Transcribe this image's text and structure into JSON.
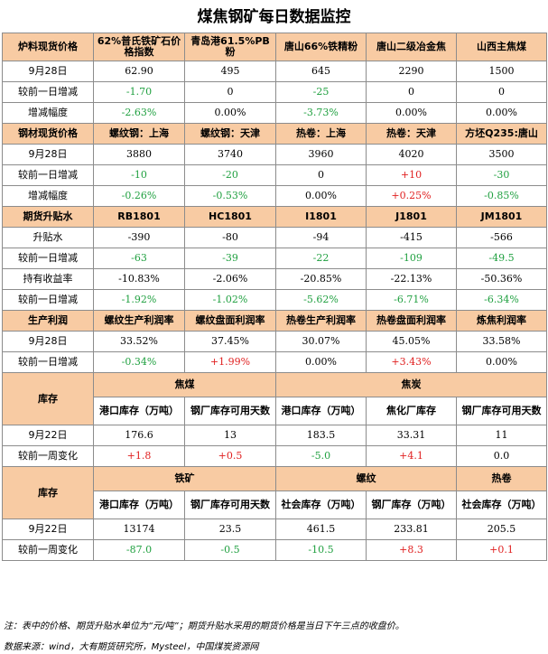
{
  "title": "煤焦钢矿每日数据监控",
  "colors": {
    "header_bg": "#f8cba3",
    "up": "#e02020",
    "down": "#20a040",
    "border": "#8c8c8c"
  },
  "s1": {
    "head": [
      "炉料现货价格",
      "62%普氏铁矿石价格指数",
      "青岛港61.5%PB粉",
      "唐山66%铁精粉",
      "唐山二级冶金焦",
      "山西主焦煤"
    ],
    "rows": [
      {
        "label": "9月28日",
        "cells": [
          {
            "v": "62.90",
            "c": ""
          },
          {
            "v": "495",
            "c": ""
          },
          {
            "v": "645",
            "c": ""
          },
          {
            "v": "2290",
            "c": ""
          },
          {
            "v": "1500",
            "c": ""
          }
        ]
      },
      {
        "label": "较前一日增减",
        "cells": [
          {
            "v": "-1.70",
            "c": "green"
          },
          {
            "v": "0",
            "c": ""
          },
          {
            "v": "-25",
            "c": "green"
          },
          {
            "v": "0",
            "c": ""
          },
          {
            "v": "0",
            "c": ""
          }
        ]
      },
      {
        "label": "增减幅度",
        "cells": [
          {
            "v": "-2.63%",
            "c": "green"
          },
          {
            "v": "0.00%",
            "c": ""
          },
          {
            "v": "-3.73%",
            "c": "green"
          },
          {
            "v": "0.00%",
            "c": ""
          },
          {
            "v": "0.00%",
            "c": ""
          }
        ]
      }
    ]
  },
  "s2": {
    "head": [
      "钢材现货价格",
      "螺纹钢：上海",
      "螺纹钢：天津",
      "热卷：上海",
      "热卷：天津",
      "方坯Q235:唐山"
    ],
    "rows": [
      {
        "label": "9月28日",
        "cells": [
          {
            "v": "3880",
            "c": ""
          },
          {
            "v": "3740",
            "c": ""
          },
          {
            "v": "3960",
            "c": ""
          },
          {
            "v": "4020",
            "c": ""
          },
          {
            "v": "3500",
            "c": ""
          }
        ]
      },
      {
        "label": "较前一日增减",
        "cells": [
          {
            "v": "-10",
            "c": "green"
          },
          {
            "v": "-20",
            "c": "green"
          },
          {
            "v": "0",
            "c": ""
          },
          {
            "v": "+10",
            "c": "red"
          },
          {
            "v": "-30",
            "c": "green"
          }
        ]
      },
      {
        "label": "增减幅度",
        "cells": [
          {
            "v": "-0.26%",
            "c": "green"
          },
          {
            "v": "-0.53%",
            "c": "green"
          },
          {
            "v": "0.00%",
            "c": ""
          },
          {
            "v": "+0.25%",
            "c": "red"
          },
          {
            "v": "-0.85%",
            "c": "green"
          }
        ]
      }
    ]
  },
  "s3": {
    "head": [
      "期货升贴水",
      "RB1801",
      "HC1801",
      "I1801",
      "J1801",
      "JM1801"
    ],
    "rows": [
      {
        "label": "升贴水",
        "cells": [
          {
            "v": "-390",
            "c": ""
          },
          {
            "v": "-80",
            "c": ""
          },
          {
            "v": "-94",
            "c": ""
          },
          {
            "v": "-415",
            "c": ""
          },
          {
            "v": "-566",
            "c": ""
          }
        ]
      },
      {
        "label": "较前一日增减",
        "cells": [
          {
            "v": "-63",
            "c": "green"
          },
          {
            "v": "-39",
            "c": "green"
          },
          {
            "v": "-22",
            "c": "green"
          },
          {
            "v": "-109",
            "c": "green"
          },
          {
            "v": "-49.5",
            "c": "green"
          }
        ]
      },
      {
        "label": "持有收益率",
        "cells": [
          {
            "v": "-10.83%",
            "c": ""
          },
          {
            "v": "-2.06%",
            "c": ""
          },
          {
            "v": "-20.85%",
            "c": ""
          },
          {
            "v": "-22.13%",
            "c": ""
          },
          {
            "v": "-50.36%",
            "c": ""
          }
        ]
      },
      {
        "label": "较前一日增减",
        "cells": [
          {
            "v": "-1.92%",
            "c": "green"
          },
          {
            "v": "-1.02%",
            "c": "green"
          },
          {
            "v": "-5.62%",
            "c": "green"
          },
          {
            "v": "-6.71%",
            "c": "green"
          },
          {
            "v": "-6.34%",
            "c": "green"
          }
        ]
      }
    ]
  },
  "s4": {
    "head": [
      "生产利润",
      "螺纹生产利润率",
      "螺纹盘面利润率",
      "热卷生产利润率",
      "热卷盘面利润率",
      "炼焦利润率"
    ],
    "rows": [
      {
        "label": "9月28日",
        "cells": [
          {
            "v": "33.52%",
            "c": ""
          },
          {
            "v": "37.45%",
            "c": ""
          },
          {
            "v": "30.07%",
            "c": ""
          },
          {
            "v": "45.05%",
            "c": ""
          },
          {
            "v": "33.58%",
            "c": ""
          }
        ]
      },
      {
        "label": "较前一日增减",
        "cells": [
          {
            "v": "-0.34%",
            "c": "green"
          },
          {
            "v": "+1.99%",
            "c": "red"
          },
          {
            "v": "0.00%",
            "c": ""
          },
          {
            "v": "+3.43%",
            "c": "red"
          },
          {
            "v": "0.00%",
            "c": ""
          }
        ]
      }
    ]
  },
  "s5": {
    "label": "库存",
    "groups": [
      "焦煤",
      "焦炭"
    ],
    "head": [
      "港口库存（万吨）",
      "钢厂库存可用天数",
      "港口库存（万吨）",
      "焦化厂库存",
      "钢厂库存可用天数"
    ],
    "rows": [
      {
        "label": "9月22日",
        "cells": [
          {
            "v": "176.6",
            "c": ""
          },
          {
            "v": "13",
            "c": ""
          },
          {
            "v": "183.5",
            "c": ""
          },
          {
            "v": "33.31",
            "c": ""
          },
          {
            "v": "11",
            "c": ""
          }
        ]
      },
      {
        "label": "较前一周变化",
        "cells": [
          {
            "v": "+1.8",
            "c": "red"
          },
          {
            "v": "+0.5",
            "c": "red"
          },
          {
            "v": "-5.0",
            "c": "green"
          },
          {
            "v": "+4.1",
            "c": "red"
          },
          {
            "v": "0.0",
            "c": ""
          }
        ]
      }
    ]
  },
  "s6": {
    "label": "库存",
    "groups": [
      "铁矿",
      "螺纹",
      "热卷"
    ],
    "head": [
      "港口库存（万吨）",
      "钢厂库存可用天数",
      "社会库存（万吨）",
      "钢厂库存（万吨）",
      "社会库存（万吨）"
    ],
    "rows": [
      {
        "label": "9月22日",
        "cells": [
          {
            "v": "13174",
            "c": ""
          },
          {
            "v": "23.5",
            "c": ""
          },
          {
            "v": "461.5",
            "c": ""
          },
          {
            "v": "233.81",
            "c": ""
          },
          {
            "v": "205.5",
            "c": ""
          }
        ]
      },
      {
        "label": "较前一周变化",
        "cells": [
          {
            "v": "-87.0",
            "c": "green"
          },
          {
            "v": "-0.5",
            "c": "green"
          },
          {
            "v": "-10.5",
            "c": "green"
          },
          {
            "v": "+8.3",
            "c": "red"
          },
          {
            "v": "+0.1",
            "c": "red"
          }
        ]
      }
    ]
  },
  "note": "注：表中的价格、期货升贴水单位为“元/吨”；期货升贴水采用的期货价格是当日下午三点的收盘价。",
  "source": "数据来源：wind，大有期货研究所，Mysteel，中国煤炭资源网"
}
